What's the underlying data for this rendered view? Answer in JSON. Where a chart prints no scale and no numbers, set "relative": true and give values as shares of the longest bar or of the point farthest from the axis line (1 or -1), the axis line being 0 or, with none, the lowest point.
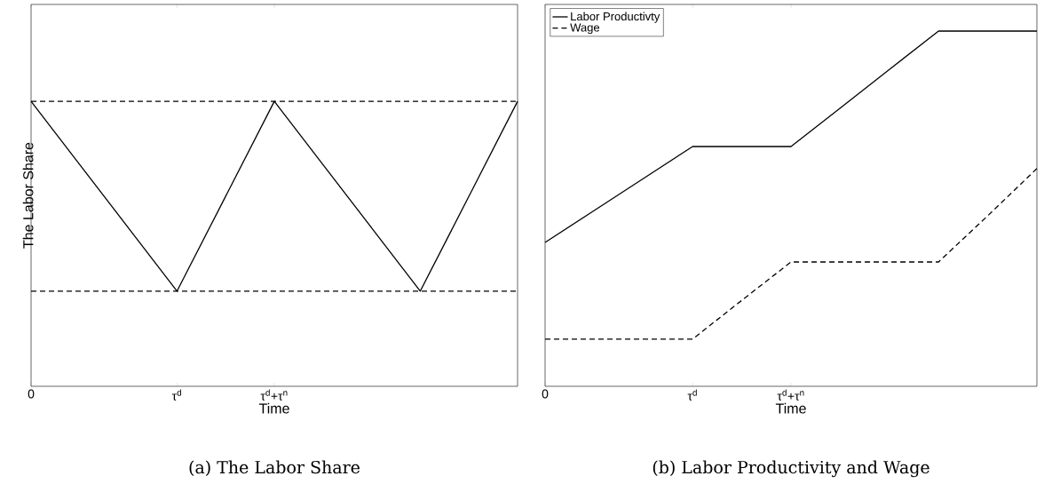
{
  "chart_data": [
    {
      "type": "line",
      "title": "(a) The Labor Share",
      "xlabel": "Time",
      "ylabel": "The Labor Share",
      "relative": true,
      "tick_labels": "x",
      "categories": [
        "0",
        null,
        null,
        "τ$^{d}$",
        null,
        "τ$^{d}$+τ$^{n}$",
        null,
        null,
        null,
        null,
        null
      ],
      "series": [
        {
          "color": "#000000",
          "line_style": "solid",
          "values": [
            1,
            0.778,
            0.556,
            0.334,
            0.667,
            1,
            0.778,
            0.556,
            0.334,
            0.667,
            1
          ]
        }
      ],
      "ref_lines": [
        {
          "axis": "y",
          "value": 1,
          "color": "#000000",
          "line_style": "dashed"
        },
        {
          "axis": "y",
          "value": 0.334,
          "color": "#000000",
          "line_style": "dashed"
        }
      ]
    },
    {
      "type": "line",
      "title": "(b) Labor Productivity and Wage",
      "xlabel": "Time",
      "relative": true,
      "legend": "top left",
      "tick_labels": "x",
      "categories": [
        "0",
        null,
        null,
        "τ$^{d}$",
        null,
        "τ$^{d}$+τ$^{n}$",
        null,
        null,
        null,
        null,
        null
      ],
      "series": [
        {
          "name": "Labor Productivty",
          "color": "#000000",
          "line_style": "solid",
          "values": [
            0.405,
            0.495,
            0.585,
            0.675,
            0.675,
            0.675,
            0.783,
            0.892,
            1,
            1,
            1
          ]
        },
        {
          "name": "Wage",
          "color": "#000000",
          "line_style": "dashed",
          "values": [
            0.133,
            0.133,
            0.133,
            0.133,
            0.242,
            0.35,
            0.35,
            0.35,
            0.35,
            0.48,
            0.613
          ]
        }
      ]
    }
  ]
}
